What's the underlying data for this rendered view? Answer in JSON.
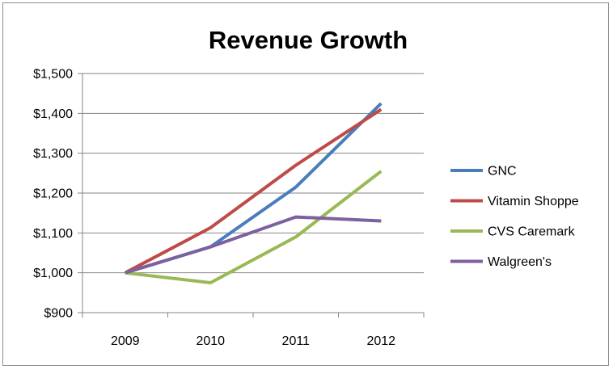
{
  "chart_data": {
    "type": "line",
    "title": "Revenue Growth",
    "xlabel": "",
    "ylabel": "",
    "categories": [
      "2009",
      "2010",
      "2011",
      "2012"
    ],
    "ylim": [
      900,
      1500
    ],
    "ytick_step": 100,
    "ytick_labels": [
      "$900",
      "$1,000",
      "$1,100",
      "$1,200",
      "$1,300",
      "$1,400",
      "$1,500"
    ],
    "grid": true,
    "legend_position": "right",
    "series": [
      {
        "name": "GNC",
        "color": "#4a7ebb",
        "values": [
          1000,
          1065,
          1215,
          1425
        ]
      },
      {
        "name": "Vitamin Shoppe",
        "color": "#be4b48",
        "values": [
          1000,
          1113,
          1270,
          1410
        ]
      },
      {
        "name": "CVS Caremark",
        "color": "#98b954",
        "values": [
          1000,
          975,
          1090,
          1255
        ]
      },
      {
        "name": "Walgreen's",
        "color": "#7d60a0",
        "values": [
          1000,
          1065,
          1140,
          1130
        ]
      }
    ]
  }
}
